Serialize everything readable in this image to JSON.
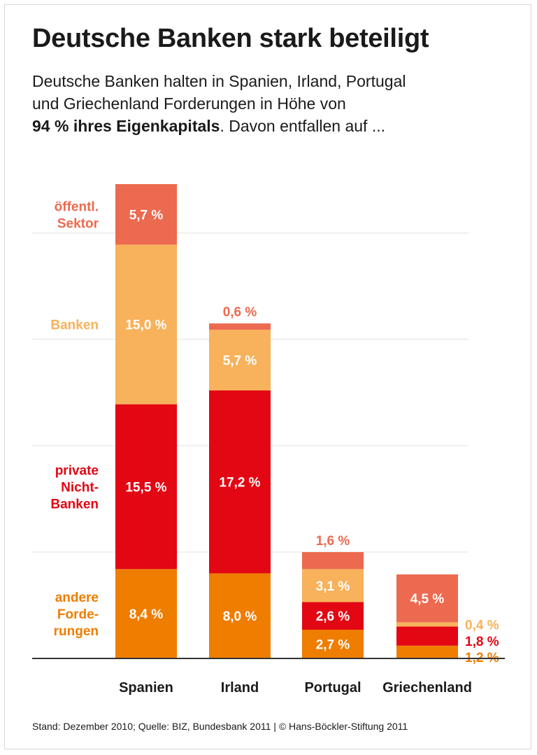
{
  "title": "Deutsche Banken stark beteiligt",
  "subtitle": {
    "line1": "Deutsche Banken halten in Spanien, Irland, Portugal",
    "line2": "und Griechenland Forderungen in Höhe von",
    "bold": "94 % ihres Eigenkapitals",
    "tail": ". Davon entfallen auf ..."
  },
  "footer": "Stand: Dezember 2010; Quelle: BIZ, Bundesbank 2011 | © Hans-Böckler-Stiftung 2011",
  "colors": {
    "andere": "#ef7d00",
    "private": "#e30613",
    "banken": "#f7b25b",
    "oeffentl": "#ec6a4f",
    "gridline": "#e2e2e2",
    "axis": "#333333"
  },
  "chart_data": {
    "type": "bar",
    "stacked": true,
    "categories": [
      "Spanien",
      "Irland",
      "Portugal",
      "Griechenland"
    ],
    "series": [
      {
        "key": "andere",
        "name": "andere Forde-rungen",
        "name_lines": [
          "andere",
          "Forde-",
          "rungen"
        ],
        "values": [
          8.4,
          8.0,
          2.7,
          1.2
        ],
        "labels": [
          "8,4 %",
          "8,0 %",
          "2,7 %",
          "1,2 %"
        ]
      },
      {
        "key": "private",
        "name": "private Nicht-Banken",
        "name_lines": [
          "private",
          "Nicht-",
          "Banken"
        ],
        "values": [
          15.5,
          17.2,
          2.6,
          1.8
        ],
        "labels": [
          "15,5 %",
          "17,2 %",
          "2,6 %",
          "1,8 %"
        ]
      },
      {
        "key": "banken",
        "name": "Banken",
        "name_lines": [
          "Banken"
        ],
        "values": [
          15.0,
          5.7,
          3.1,
          0.4
        ],
        "labels": [
          "15,0 %",
          "5,7 %",
          "3,1 %",
          "0,4 %"
        ]
      },
      {
        "key": "oeffentl",
        "name": "öffentl. Sektor",
        "name_lines": [
          "öffentl.",
          "Sektor"
        ],
        "values": [
          5.7,
          0.6,
          1.6,
          4.5
        ],
        "labels": [
          "5,7 %",
          "0,6 %",
          "1,6 %",
          "4,5 %"
        ]
      }
    ],
    "ylim": [
      0,
      45
    ],
    "grid_step": 10,
    "xlabel": "",
    "ylabel": ""
  }
}
